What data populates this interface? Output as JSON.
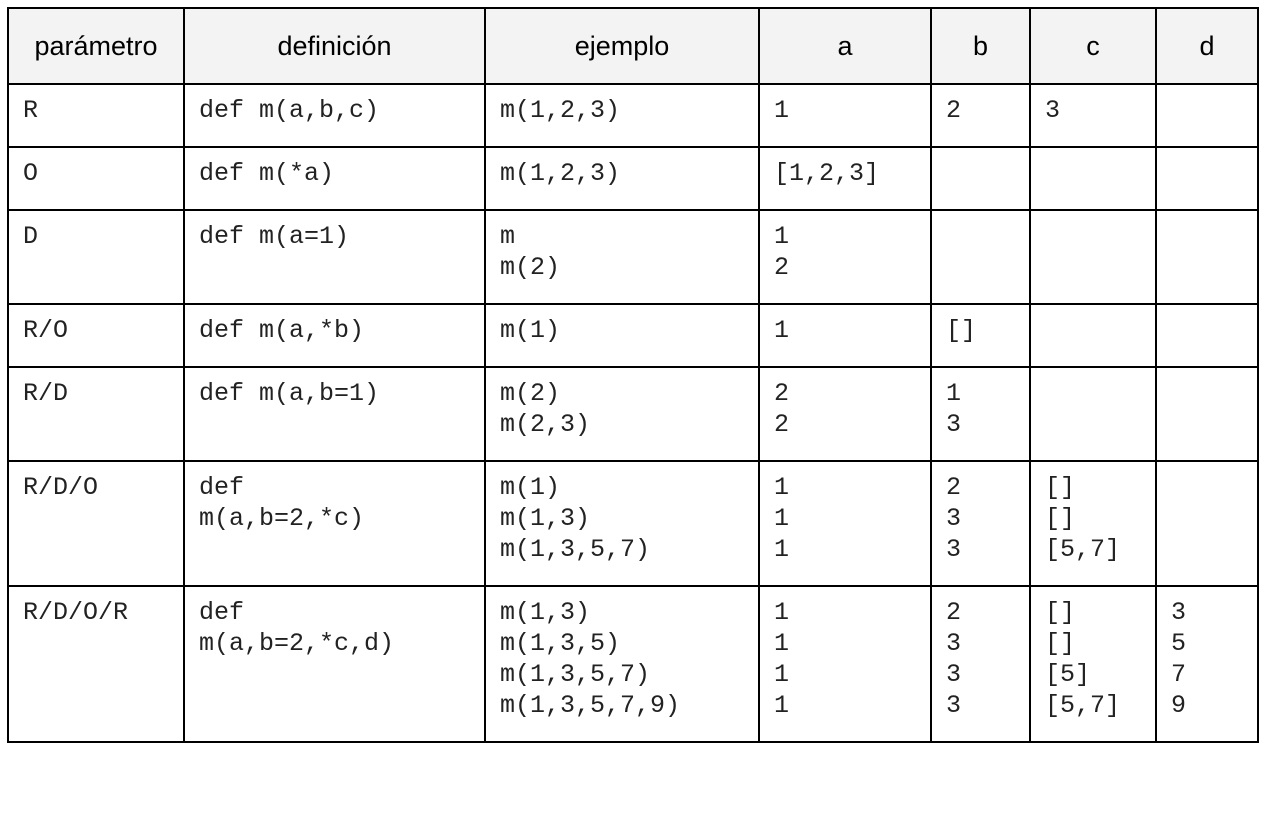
{
  "table": {
    "headers": [
      "parámetro",
      "definición",
      "ejemplo",
      "a",
      "b",
      "c",
      "d"
    ],
    "rows": [
      {
        "parametro": [
          "R"
        ],
        "definicion": [
          "def m(a,b,c)"
        ],
        "ejemplo": [
          "m(1,2,3)"
        ],
        "a": [
          "1"
        ],
        "b": [
          "2"
        ],
        "c": [
          "3"
        ],
        "d": []
      },
      {
        "parametro": [
          "O"
        ],
        "definicion": [
          "def m(*a)"
        ],
        "ejemplo": [
          "m(1,2,3)"
        ],
        "a": [
          "[1,2,3]"
        ],
        "b": [],
        "c": [],
        "d": []
      },
      {
        "parametro": [
          "D"
        ],
        "definicion": [
          "def m(a=1)"
        ],
        "ejemplo": [
          "m",
          "m(2)"
        ],
        "a": [
          "1",
          "2"
        ],
        "b": [],
        "c": [],
        "d": []
      },
      {
        "parametro": [
          "R/O"
        ],
        "definicion": [
          "def m(a,*b)"
        ],
        "ejemplo": [
          "m(1)"
        ],
        "a": [
          "1"
        ],
        "b": [
          "[]"
        ],
        "c": [],
        "d": []
      },
      {
        "parametro": [
          "R/D"
        ],
        "definicion": [
          "def m(a,b=1)"
        ],
        "ejemplo": [
          "m(2)",
          "m(2,3)"
        ],
        "a": [
          "2",
          "2"
        ],
        "b": [
          "1",
          "3"
        ],
        "c": [],
        "d": []
      },
      {
        "parametro": [
          "R/D/O"
        ],
        "definicion": [
          "def",
          "m(a,b=2,*c)"
        ],
        "ejemplo": [
          "m(1)",
          "m(1,3)",
          "m(1,3,5,7)"
        ],
        "a": [
          "1",
          "1",
          "1"
        ],
        "b": [
          "2",
          "3",
          "3"
        ],
        "c": [
          "[]",
          "[]",
          "[5,7]"
        ],
        "d": []
      },
      {
        "parametro": [
          "R/D/O/R"
        ],
        "definicion": [
          "def",
          "m(a,b=2,*c,d)"
        ],
        "ejemplo": [
          "m(1,3)",
          "m(1,3,5)",
          "m(1,3,5,7)",
          "m(1,3,5,7,9)"
        ],
        "a": [
          "1",
          "1",
          "1",
          "1"
        ],
        "b": [
          "2",
          "3",
          "3",
          "3"
        ],
        "c": [
          "[]",
          "[]",
          "[5]",
          "[5,7]"
        ],
        "d": [
          "3",
          "5",
          "7",
          "9"
        ]
      }
    ]
  },
  "colors": {
    "header_background": "#f3f3f3",
    "border": "#000000",
    "cell_text": "#222222"
  }
}
